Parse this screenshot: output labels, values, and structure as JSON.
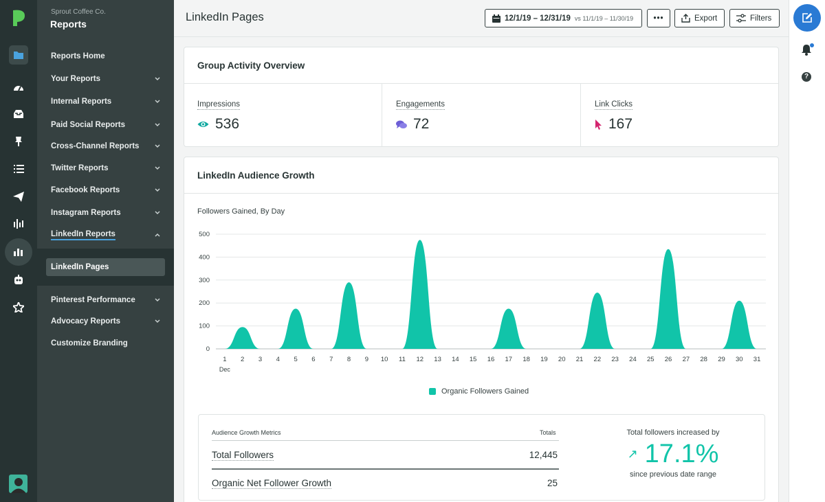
{
  "nav": {
    "org": "Sprout Coffee Co.",
    "title": "Reports",
    "items": [
      {
        "label": "Reports Home"
      },
      {
        "label": "Your Reports"
      },
      {
        "label": "Internal Reports"
      },
      {
        "label": "Paid Social Reports"
      },
      {
        "label": "Cross-Channel Reports"
      },
      {
        "label": "Twitter Reports"
      },
      {
        "label": "Facebook Reports"
      },
      {
        "label": "Instagram Reports"
      },
      {
        "label": "LinkedIn Reports"
      },
      {
        "label": "Pinterest Performance"
      },
      {
        "label": "Advocacy Reports"
      },
      {
        "label": "Customize Branding"
      }
    ],
    "subitem": "LinkedIn Pages"
  },
  "header": {
    "title": "LinkedIn Pages",
    "date_range": "12/1/19 – 12/31/19",
    "compare_range": "vs 11/1/19 – 11/30/19",
    "more_label": "•••",
    "export_label": "Export",
    "filters_label": "Filters"
  },
  "overview": {
    "title": "Group Activity Overview",
    "metrics": [
      {
        "label": "Impressions",
        "value": "536",
        "icon": "eye-icon",
        "color": "#11a9a0"
      },
      {
        "label": "Engagements",
        "value": "72",
        "icon": "chat-bubbles-icon",
        "color": "#6d5fd6"
      },
      {
        "label": "Link Clicks",
        "value": "167",
        "icon": "cursor-icon",
        "color": "#d4256f"
      }
    ]
  },
  "growth": {
    "title": "LinkedIn Audience Growth",
    "chart_subtitle": "Followers Gained, By Day",
    "legend_label": "Organic Followers Gained",
    "metrics_header": "Audience Growth Metrics",
    "totals_header": "Totals",
    "rows": [
      {
        "name": "Total Followers",
        "value": "12,445"
      },
      {
        "name": "Organic Net Follower Growth",
        "value": "25"
      }
    ],
    "increase_caption": "Total followers increased by",
    "increase_value": "17.1%",
    "increase_since": "since previous date range"
  },
  "colors": {
    "accent": "#11c4a9",
    "nav_bg": "#364141",
    "rail_bg": "#273333",
    "compose": "#2a7ad4"
  },
  "chart_data": {
    "type": "area",
    "title": "Followers Gained, By Day",
    "x": [
      1,
      2,
      3,
      4,
      5,
      6,
      7,
      8,
      9,
      10,
      11,
      12,
      13,
      14,
      15,
      16,
      17,
      18,
      19,
      20,
      21,
      22,
      23,
      24,
      25,
      26,
      27,
      28,
      29,
      30,
      31
    ],
    "x_first_label_sub": "Dec",
    "series": [
      {
        "name": "Organic Followers Gained",
        "color": "#11c4a9",
        "values": [
          0,
          95,
          0,
          0,
          175,
          0,
          0,
          290,
          0,
          0,
          0,
          475,
          0,
          0,
          0,
          0,
          175,
          0,
          0,
          0,
          0,
          245,
          0,
          0,
          0,
          435,
          0,
          0,
          0,
          210,
          0
        ]
      }
    ],
    "ylim": [
      0,
      500
    ],
    "yticks": [
      0,
      100,
      200,
      300,
      400,
      500
    ],
    "grid": true,
    "legend": "bottom"
  }
}
